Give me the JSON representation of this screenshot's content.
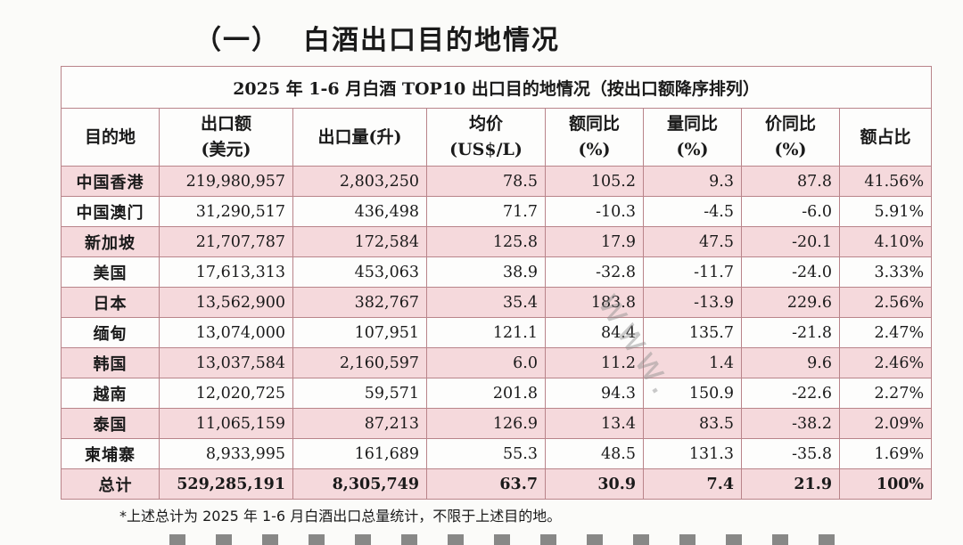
{
  "heading": {
    "number": "（一）",
    "text": "白酒出口目的地情况"
  },
  "table": {
    "caption": "2025 年 1-6 月白酒 TOP10 出口目的地情况（按出口额降序排列）",
    "headers": [
      [
        "目的地"
      ],
      [
        "出口额",
        "(美元)"
      ],
      [
        "出口量(升)"
      ],
      [
        "均价",
        "(US$/L)"
      ],
      [
        "额同比",
        "(%)"
      ],
      [
        "量同比",
        "(%)"
      ],
      [
        "价同比",
        "(%)"
      ],
      [
        "额占比"
      ]
    ],
    "rows": [
      [
        "中国香港",
        "219,980,957",
        "2,803,250",
        "78.5",
        "105.2",
        "9.3",
        "87.8",
        "41.56%"
      ],
      [
        "中国澳门",
        "31,290,517",
        "436,498",
        "71.7",
        "-10.3",
        "-4.5",
        "-6.0",
        "5.91%"
      ],
      [
        "新加坡",
        "21,707,787",
        "172,584",
        "125.8",
        "17.9",
        "47.5",
        "-20.1",
        "4.10%"
      ],
      [
        "美国",
        "17,613,313",
        "453,063",
        "38.9",
        "-32.8",
        "-11.7",
        "-24.0",
        "3.33%"
      ],
      [
        "日本",
        "13,562,900",
        "382,767",
        "35.4",
        "183.8",
        "-13.9",
        "229.6",
        "2.56%"
      ],
      [
        "缅甸",
        "13,074,000",
        "107,951",
        "121.1",
        "84.4",
        "135.7",
        "-21.8",
        "2.47%"
      ],
      [
        "韩国",
        "13,037,584",
        "2,160,597",
        "6.0",
        "11.2",
        "1.4",
        "9.6",
        "2.46%"
      ],
      [
        "越南",
        "12,020,725",
        "59,571",
        "201.8",
        "94.3",
        "150.9",
        "-22.6",
        "2.27%"
      ],
      [
        "泰国",
        "11,065,159",
        "87,213",
        "126.9",
        "13.4",
        "83.5",
        "-38.2",
        "2.09%"
      ],
      [
        "柬埔寨",
        "8,933,995",
        "161,689",
        "55.3",
        "48.5",
        "131.3",
        "-35.8",
        "1.69%"
      ]
    ],
    "total": [
      "总计",
      "529,285,191",
      "8,305,749",
      "63.7",
      "30.9",
      "7.4",
      "21.9",
      "100%"
    ]
  },
  "note": "*上述总计为 2025 年 1-6 月白酒出口总量统计，不限于上述目的地。",
  "colors": {
    "row_pink": "#f5d9dc",
    "border": "#b9848a",
    "background": "#fbfbf9"
  }
}
